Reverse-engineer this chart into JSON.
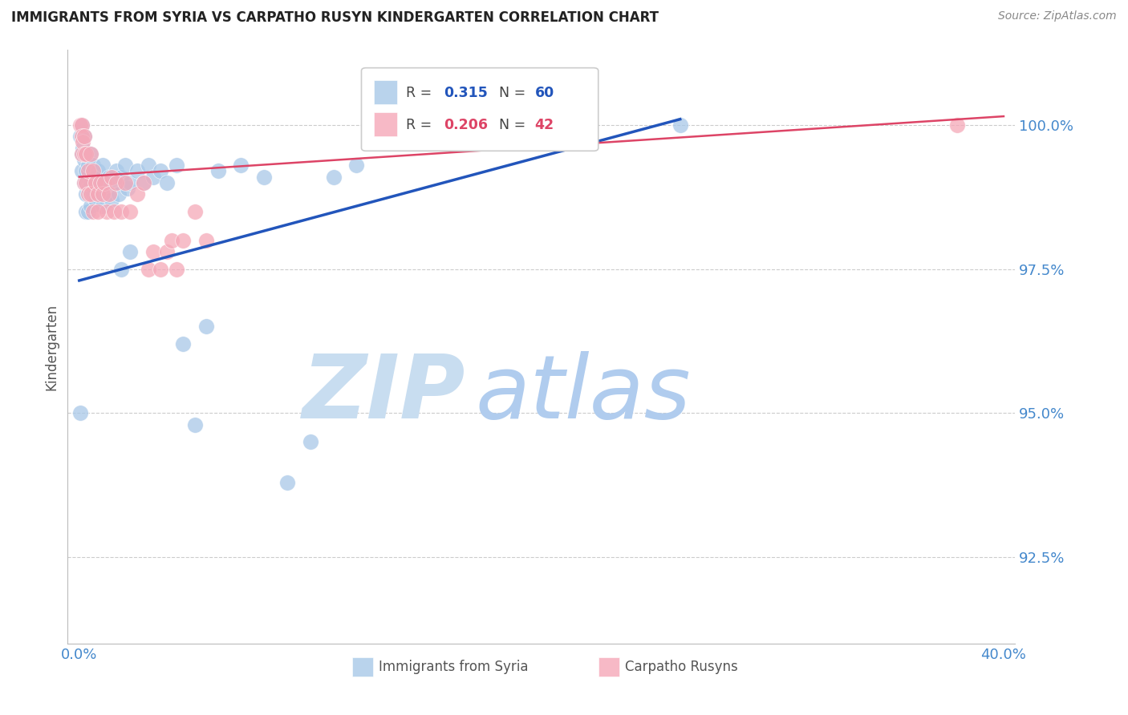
{
  "title": "IMMIGRANTS FROM SYRIA VS CARPATHO RUSYN KINDERGARTEN CORRELATION CHART",
  "source": "Source: ZipAtlas.com",
  "ylabel": "Kindergarten",
  "blue_label": "Immigrants from Syria",
  "pink_label": "Carpatho Rusyns",
  "blue_r": "0.315",
  "blue_n": "60",
  "pink_r": "0.206",
  "pink_n": "42",
  "blue_color": "#a8c8e8",
  "pink_color": "#f5a8b8",
  "blue_line_color": "#2255bb",
  "pink_line_color": "#dd4466",
  "watermark_zip_color": "#c8ddf0",
  "watermark_atlas_color": "#b0ccee",
  "axis_label_color": "#4488cc",
  "title_color": "#222222",
  "grid_color": "#cccccc",
  "source_color": "#888888",
  "blue_x": [
    0.0005,
    0.001,
    0.001,
    0.001,
    0.0015,
    0.002,
    0.002,
    0.002,
    0.0025,
    0.003,
    0.003,
    0.003,
    0.003,
    0.004,
    0.004,
    0.004,
    0.005,
    0.005,
    0.005,
    0.006,
    0.006,
    0.007,
    0.007,
    0.008,
    0.008,
    0.009,
    0.01,
    0.01,
    0.011,
    0.012,
    0.013,
    0.014,
    0.015,
    0.016,
    0.017,
    0.018,
    0.02,
    0.021,
    0.022,
    0.025,
    0.028,
    0.03,
    0.032,
    0.035,
    0.038,
    0.042,
    0.045,
    0.05,
    0.055,
    0.06,
    0.07,
    0.08,
    0.09,
    0.1,
    0.11,
    0.12,
    0.018,
    0.022,
    0.26,
    0.0005
  ],
  "blue_y": [
    99.8,
    100.0,
    99.5,
    99.2,
    99.6,
    99.8,
    99.4,
    99.0,
    99.5,
    99.2,
    98.8,
    98.5,
    99.0,
    99.3,
    98.9,
    98.5,
    99.5,
    99.0,
    98.6,
    99.3,
    98.8,
    99.1,
    98.7,
    99.2,
    98.8,
    99.0,
    99.3,
    98.6,
    99.0,
    98.8,
    99.1,
    98.7,
    99.0,
    99.2,
    98.8,
    99.1,
    99.3,
    98.9,
    99.0,
    99.2,
    99.0,
    99.3,
    99.1,
    99.2,
    99.0,
    99.3,
    96.2,
    94.8,
    96.5,
    99.2,
    99.3,
    99.1,
    93.8,
    94.5,
    99.1,
    99.3,
    97.5,
    97.8,
    100.0,
    95.0
  ],
  "pink_x": [
    0.0005,
    0.001,
    0.001,
    0.001,
    0.0015,
    0.002,
    0.002,
    0.002,
    0.003,
    0.003,
    0.004,
    0.004,
    0.005,
    0.005,
    0.006,
    0.006,
    0.007,
    0.008,
    0.009,
    0.01,
    0.011,
    0.012,
    0.013,
    0.014,
    0.015,
    0.016,
    0.018,
    0.02,
    0.022,
    0.025,
    0.028,
    0.03,
    0.032,
    0.035,
    0.038,
    0.04,
    0.042,
    0.045,
    0.05,
    0.055,
    0.38,
    0.008
  ],
  "pink_y": [
    100.0,
    100.0,
    99.8,
    99.5,
    99.7,
    99.8,
    99.5,
    99.0,
    99.5,
    99.0,
    99.2,
    98.8,
    99.5,
    98.8,
    99.2,
    98.5,
    99.0,
    98.8,
    99.0,
    98.8,
    99.0,
    98.5,
    98.8,
    99.1,
    98.5,
    99.0,
    98.5,
    99.0,
    98.5,
    98.8,
    99.0,
    97.5,
    97.8,
    97.5,
    97.8,
    98.0,
    97.5,
    98.0,
    98.5,
    98.0,
    100.0,
    98.5
  ],
  "xlim": [
    -0.005,
    0.405
  ],
  "ylim": [
    91.0,
    101.3
  ],
  "yticks": [
    92.5,
    95.0,
    97.5,
    100.0
  ],
  "xticks": [
    0.0,
    0.08,
    0.16,
    0.24,
    0.32,
    0.4
  ],
  "xtick_labels": [
    "0.0%",
    "",
    "",
    "",
    "",
    "40.0%"
  ],
  "ytick_labels": [
    "92.5%",
    "95.0%",
    "97.5%",
    "100.0%"
  ]
}
